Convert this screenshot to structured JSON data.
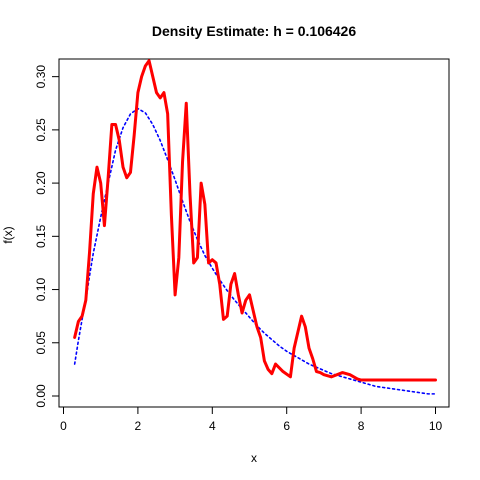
{
  "chart_data": {
    "type": "line",
    "title": "Density Estimate: h = 0.106426",
    "xlabel": "x",
    "ylabel": "f(x)",
    "xlim": [
      0,
      10
    ],
    "ylim": [
      0,
      0.31
    ],
    "x_ticks": [
      0,
      2,
      4,
      6,
      8,
      10
    ],
    "y_ticks": [
      0.0,
      0.05,
      0.1,
      0.15,
      0.2,
      0.25,
      0.3
    ],
    "x_tick_labels": [
      "0",
      "2",
      "4",
      "6",
      "8",
      "10"
    ],
    "y_tick_labels": [
      "0.00",
      "0.05",
      "0.10",
      "0.15",
      "0.20",
      "0.25",
      "0.30"
    ],
    "grid": false,
    "series": [
      {
        "color": "#ff0000",
        "style": "solid",
        "x": [
          0.3,
          0.4,
          0.5,
          0.6,
          0.7,
          0.8,
          0.9,
          1.0,
          1.1,
          1.2,
          1.3,
          1.4,
          1.5,
          1.6,
          1.7,
          1.8,
          1.9,
          2.0,
          2.1,
          2.2,
          2.3,
          2.4,
          2.5,
          2.6,
          2.7,
          2.8,
          2.9,
          3.0,
          3.1,
          3.2,
          3.3,
          3.4,
          3.5,
          3.6,
          3.7,
          3.8,
          3.9,
          4.0,
          4.1,
          4.2,
          4.3,
          4.4,
          4.5,
          4.6,
          4.7,
          4.8,
          4.9,
          5.0,
          5.1,
          5.2,
          5.3,
          5.4,
          5.5,
          5.6,
          5.7,
          5.9,
          6.1,
          6.2,
          6.4,
          6.5,
          6.6,
          6.7,
          6.8,
          6.9,
          7.0,
          7.2,
          7.5,
          7.7,
          7.8,
          7.9,
          8.0,
          8.2,
          8.5,
          9.0,
          9.5,
          10.0
        ],
        "y": [
          0.055,
          0.07,
          0.075,
          0.09,
          0.135,
          0.19,
          0.215,
          0.2,
          0.16,
          0.205,
          0.255,
          0.255,
          0.24,
          0.215,
          0.205,
          0.21,
          0.245,
          0.285,
          0.3,
          0.31,
          0.315,
          0.3,
          0.285,
          0.28,
          0.285,
          0.265,
          0.17,
          0.095,
          0.13,
          0.22,
          0.275,
          0.19,
          0.125,
          0.13,
          0.2,
          0.18,
          0.125,
          0.128,
          0.125,
          0.105,
          0.072,
          0.075,
          0.105,
          0.115,
          0.095,
          0.078,
          0.09,
          0.095,
          0.08,
          0.065,
          0.055,
          0.033,
          0.025,
          0.021,
          0.03,
          0.023,
          0.018,
          0.045,
          0.075,
          0.065,
          0.045,
          0.035,
          0.023,
          0.022,
          0.02,
          0.018,
          0.022,
          0.02,
          0.018,
          0.016,
          0.015,
          0.015,
          0.015,
          0.015,
          0.015,
          0.015
        ]
      },
      {
        "color": "#0000ff",
        "style": "dotted",
        "x": [
          0.3,
          0.4,
          0.5,
          0.6,
          0.7,
          0.8,
          1.0,
          1.2,
          1.4,
          1.6,
          1.8,
          2.0,
          2.2,
          2.4,
          2.6,
          2.8,
          3.0,
          3.2,
          3.4,
          3.6,
          3.8,
          4.0,
          4.2,
          4.4,
          4.6,
          4.8,
          5.0,
          5.2,
          5.4,
          5.6,
          5.8,
          6.0,
          6.2,
          6.4,
          6.6,
          6.8,
          7.0,
          7.2,
          7.4,
          7.6,
          7.8,
          8.0,
          8.2,
          8.4,
          8.6,
          8.8,
          9.0,
          9.2,
          9.4,
          9.6,
          9.8,
          10.0
        ],
        "y": [
          0.03,
          0.052,
          0.072,
          0.09,
          0.113,
          0.134,
          0.168,
          0.2,
          0.231,
          0.252,
          0.265,
          0.27,
          0.266,
          0.255,
          0.24,
          0.222,
          0.203,
          0.183,
          0.164,
          0.147,
          0.132,
          0.12,
          0.109,
          0.099,
          0.09,
          0.082,
          0.074,
          0.066,
          0.059,
          0.053,
          0.047,
          0.042,
          0.038,
          0.034,
          0.03,
          0.027,
          0.024,
          0.021,
          0.019,
          0.017,
          0.015,
          0.013,
          0.011,
          0.009,
          0.008,
          0.007,
          0.006,
          0.005,
          0.004,
          0.003,
          0.002,
          0.002
        ]
      }
    ]
  }
}
